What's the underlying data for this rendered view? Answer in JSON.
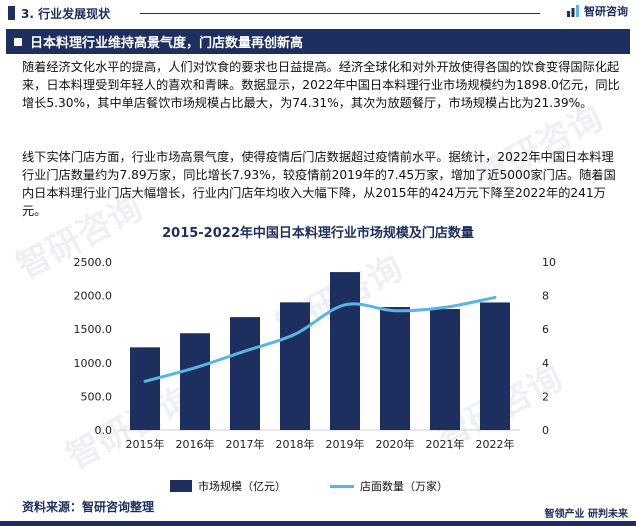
{
  "header": {
    "section_label": "3. 行业发展现状",
    "logo_text": "智研咨询"
  },
  "banner": {
    "title": "日本料理行业维持高景气度，门店数量再创新高"
  },
  "paragraphs": [
    "随着经济文化水平的提高，人们对饮食的要求也日益提高。经济全球化和对外开放使得各国的饮食变得国际化起来，日本料理受到年轻人的喜欢和青睐。数据显示，2022年中国日本料理行业市场规模约为1898.0亿元，同比增长5.30%，其中单店餐饮市场规模占比最大，为74.31%，其次为放题餐厅，市场规模占比为21.39%。",
    "线下实体门店方面，行业市场高景气度，使得疫情后门店数据超过疫情前水平。据统计，2022年中国日本料理行业门店数量约为7.89万家，同比增长7.93%，较疫情前2019年的7.45万家，增加了近5000家门店。随着国内日本料理行业门店大幅增长，行业内门店年均收入大幅下降，从2015年的424万元下降至2022年的241万元。"
  ],
  "chart_data": {
    "type": "bar",
    "title": "2015-2022年中国日本料理行业市场规模及门店数量",
    "categories": [
      "2015年",
      "2016年",
      "2017年",
      "2018年",
      "2019年",
      "2020年",
      "2021年",
      "2022年"
    ],
    "series": [
      {
        "name": "市场规模（亿元）",
        "type": "bar",
        "axis": "left",
        "values": [
          1230,
          1440,
          1680,
          1900,
          2350,
          1830,
          1800,
          1898
        ]
      },
      {
        "name": "店面数量（万家）",
        "type": "line",
        "axis": "right",
        "values": [
          2.9,
          3.7,
          4.7,
          5.7,
          7.45,
          7.1,
          7.3,
          7.89
        ]
      }
    ],
    "left_axis": {
      "ticks": [
        "2500.0",
        "2000.0",
        "1500.0",
        "1000.0",
        "500.0",
        "0.0"
      ],
      "ylim": [
        0,
        2500
      ]
    },
    "right_axis": {
      "ticks": [
        "10",
        "8",
        "6",
        "4",
        "2",
        "0"
      ],
      "ylim": [
        0,
        10
      ]
    },
    "colors": {
      "bar": "#1d2f5e",
      "line": "#5bb4e6"
    },
    "grid": false,
    "legend_position": "bottom"
  },
  "footer": {
    "source": "资料来源：智研咨询整理",
    "slogan": "智领产业  研判未来"
  },
  "watermark": "智研咨询"
}
